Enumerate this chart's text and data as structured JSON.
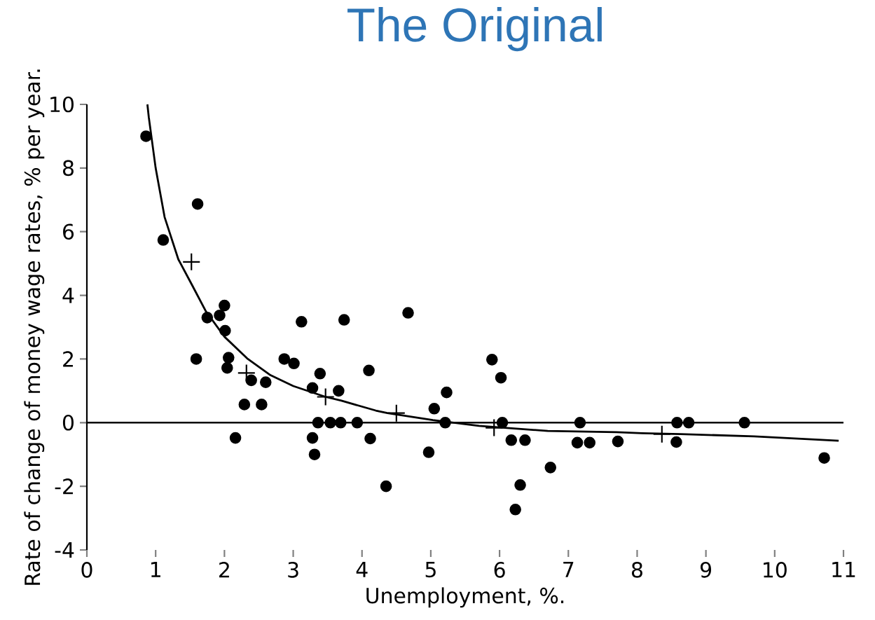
{
  "chart_data": {
    "type": "scatter",
    "title": "The Original",
    "xlabel": "Unemployment,    %.",
    "ylabel": "Rate of change of money wage rates, % per year.",
    "xlim": [
      0,
      11
    ],
    "ylim": [
      -4,
      10
    ],
    "xticks": [
      0,
      1,
      2,
      3,
      4,
      5,
      6,
      7,
      8,
      9,
      10,
      11
    ],
    "yticks": [
      -4,
      -2,
      0,
      2,
      4,
      6,
      8,
      10
    ],
    "ref_lines": [
      {
        "axis": "y",
        "value": 0,
        "color": "#000000"
      }
    ],
    "series": [
      {
        "marker": "circle",
        "color": "#000000",
        "x": [
          0.86,
          1.11,
          1.61,
          1.59,
          1.75,
          1.93,
          2.0,
          2.01,
          2.06,
          2.04,
          2.16,
          2.29,
          2.39,
          2.54,
          2.6,
          2.87,
          3.01,
          3.12,
          3.28,
          3.28,
          3.31,
          3.36,
          3.39,
          3.54,
          3.66,
          3.69,
          3.74,
          3.93,
          4.1,
          4.12,
          4.35,
          4.67,
          4.97,
          5.05,
          5.21,
          5.23,
          5.89,
          6.02,
          6.04,
          6.17,
          6.37,
          6.23,
          6.3,
          6.74,
          7.17,
          7.13,
          7.31,
          7.72,
          8.58,
          8.75,
          8.57,
          9.56,
          10.72
        ],
        "values": [
          9.0,
          5.74,
          6.87,
          2.0,
          3.3,
          3.37,
          3.68,
          2.89,
          2.04,
          1.72,
          -0.48,
          0.57,
          1.33,
          0.57,
          1.27,
          2.0,
          1.86,
          3.17,
          1.09,
          -0.48,
          -1.0,
          0,
          1.54,
          0,
          1.0,
          0,
          3.23,
          0,
          1.64,
          -0.5,
          -2.0,
          3.45,
          -0.93,
          0.44,
          0,
          0.95,
          1.98,
          1.41,
          0,
          -0.55,
          -0.55,
          -2.73,
          -1.96,
          -1.41,
          0,
          -0.63,
          -0.63,
          -0.59,
          0,
          0,
          -0.61,
          0,
          -1.11
        ]
      },
      {
        "marker": "cross",
        "color": "#000000",
        "x": [
          1.52,
          2.32,
          3.47,
          4.5,
          5.92,
          8.36
        ],
        "values": [
          5.05,
          1.56,
          0.81,
          0.3,
          -0.16,
          -0.36
        ]
      },
      {
        "type": "line",
        "color": "#000000",
        "x": [
          0.88,
          0.9,
          1.0,
          1.13,
          1.33,
          1.53,
          1.73,
          2.0,
          2.33,
          2.67,
          3.0,
          3.47,
          3.7,
          4.2,
          4.37,
          5.03,
          5.7,
          6.7,
          7.7,
          8.07,
          8.63,
          9.7,
          10.93
        ],
        "values": [
          10.0,
          9.6,
          8.0,
          6.46,
          5.13,
          4.32,
          3.5,
          2.7,
          2.02,
          1.49,
          1.15,
          0.81,
          0.69,
          0.38,
          0.3,
          0.08,
          -0.1,
          -0.26,
          -0.3,
          -0.33,
          -0.36,
          -0.43,
          -0.57
        ]
      }
    ]
  }
}
